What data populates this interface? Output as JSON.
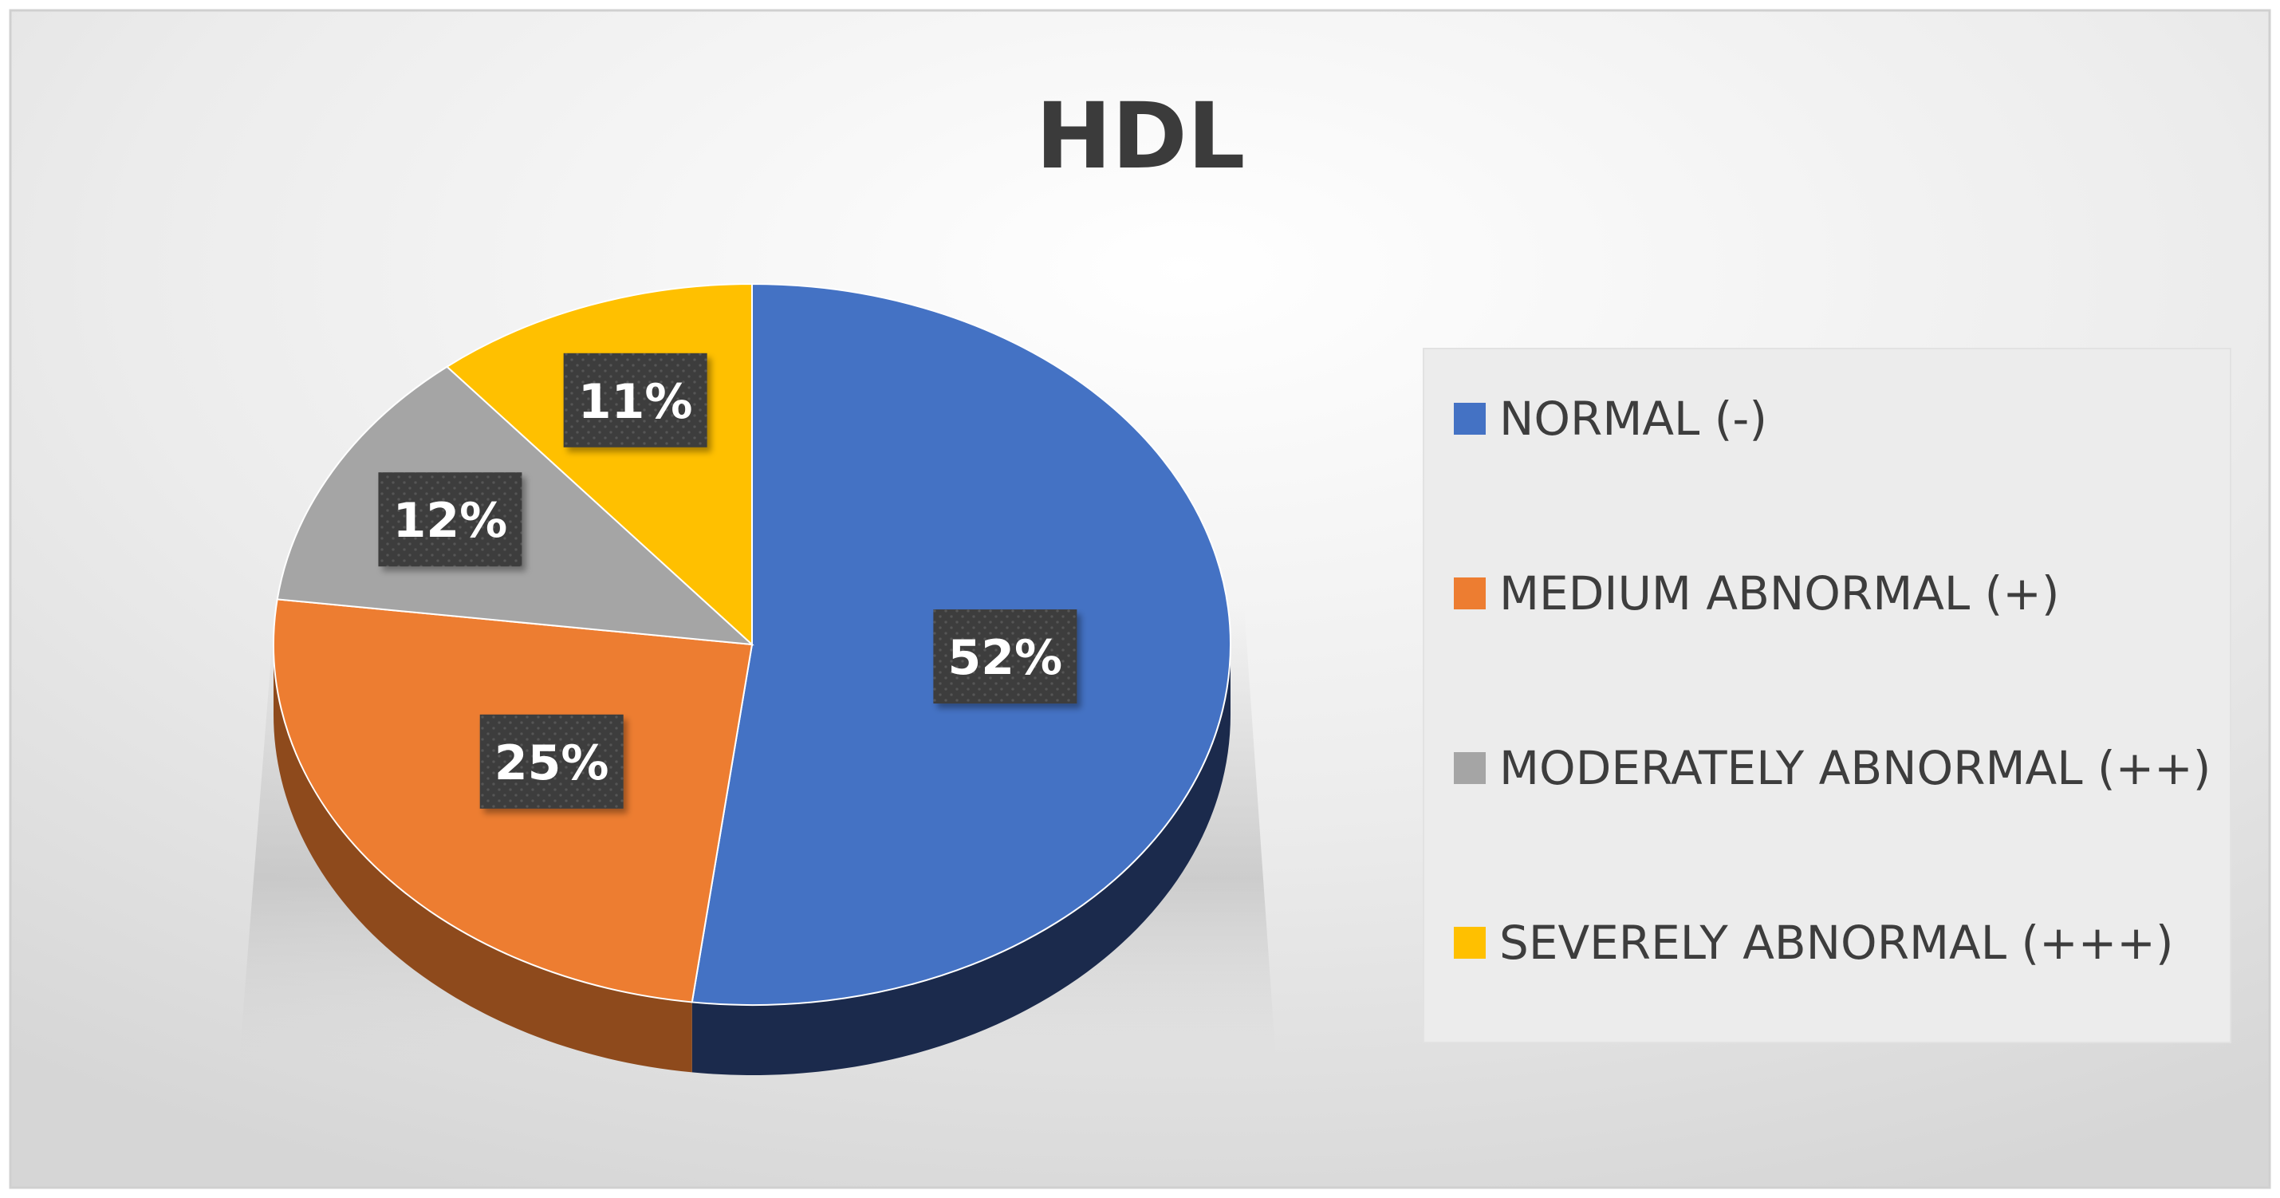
{
  "chart_data": {
    "type": "pie",
    "title": "HDL",
    "slices": [
      {
        "label": "NORMAL (-)",
        "value": 52,
        "display": "52%",
        "color": "#4472C4",
        "side_color": "#1B2A4C"
      },
      {
        "label": "MEDIUM ABNORMAL (+)",
        "value": 25,
        "display": "25%",
        "color": "#ED7D31",
        "side_color": "#8E4A1C"
      },
      {
        "label": "MODERATELY ABNORMAL (++)",
        "value": 12,
        "display": "12%",
        "color": "#A5A5A5",
        "side_color": "#636363"
      },
      {
        "label": "SEVERELY ABNORMAL (+++)",
        "value": 11,
        "display": "11%",
        "color": "#FFC000",
        "side_color": "#997300"
      }
    ],
    "legend_position": "right",
    "style": "3d-pie",
    "label_box_color": "#404040",
    "background": "#e6e6e6"
  }
}
